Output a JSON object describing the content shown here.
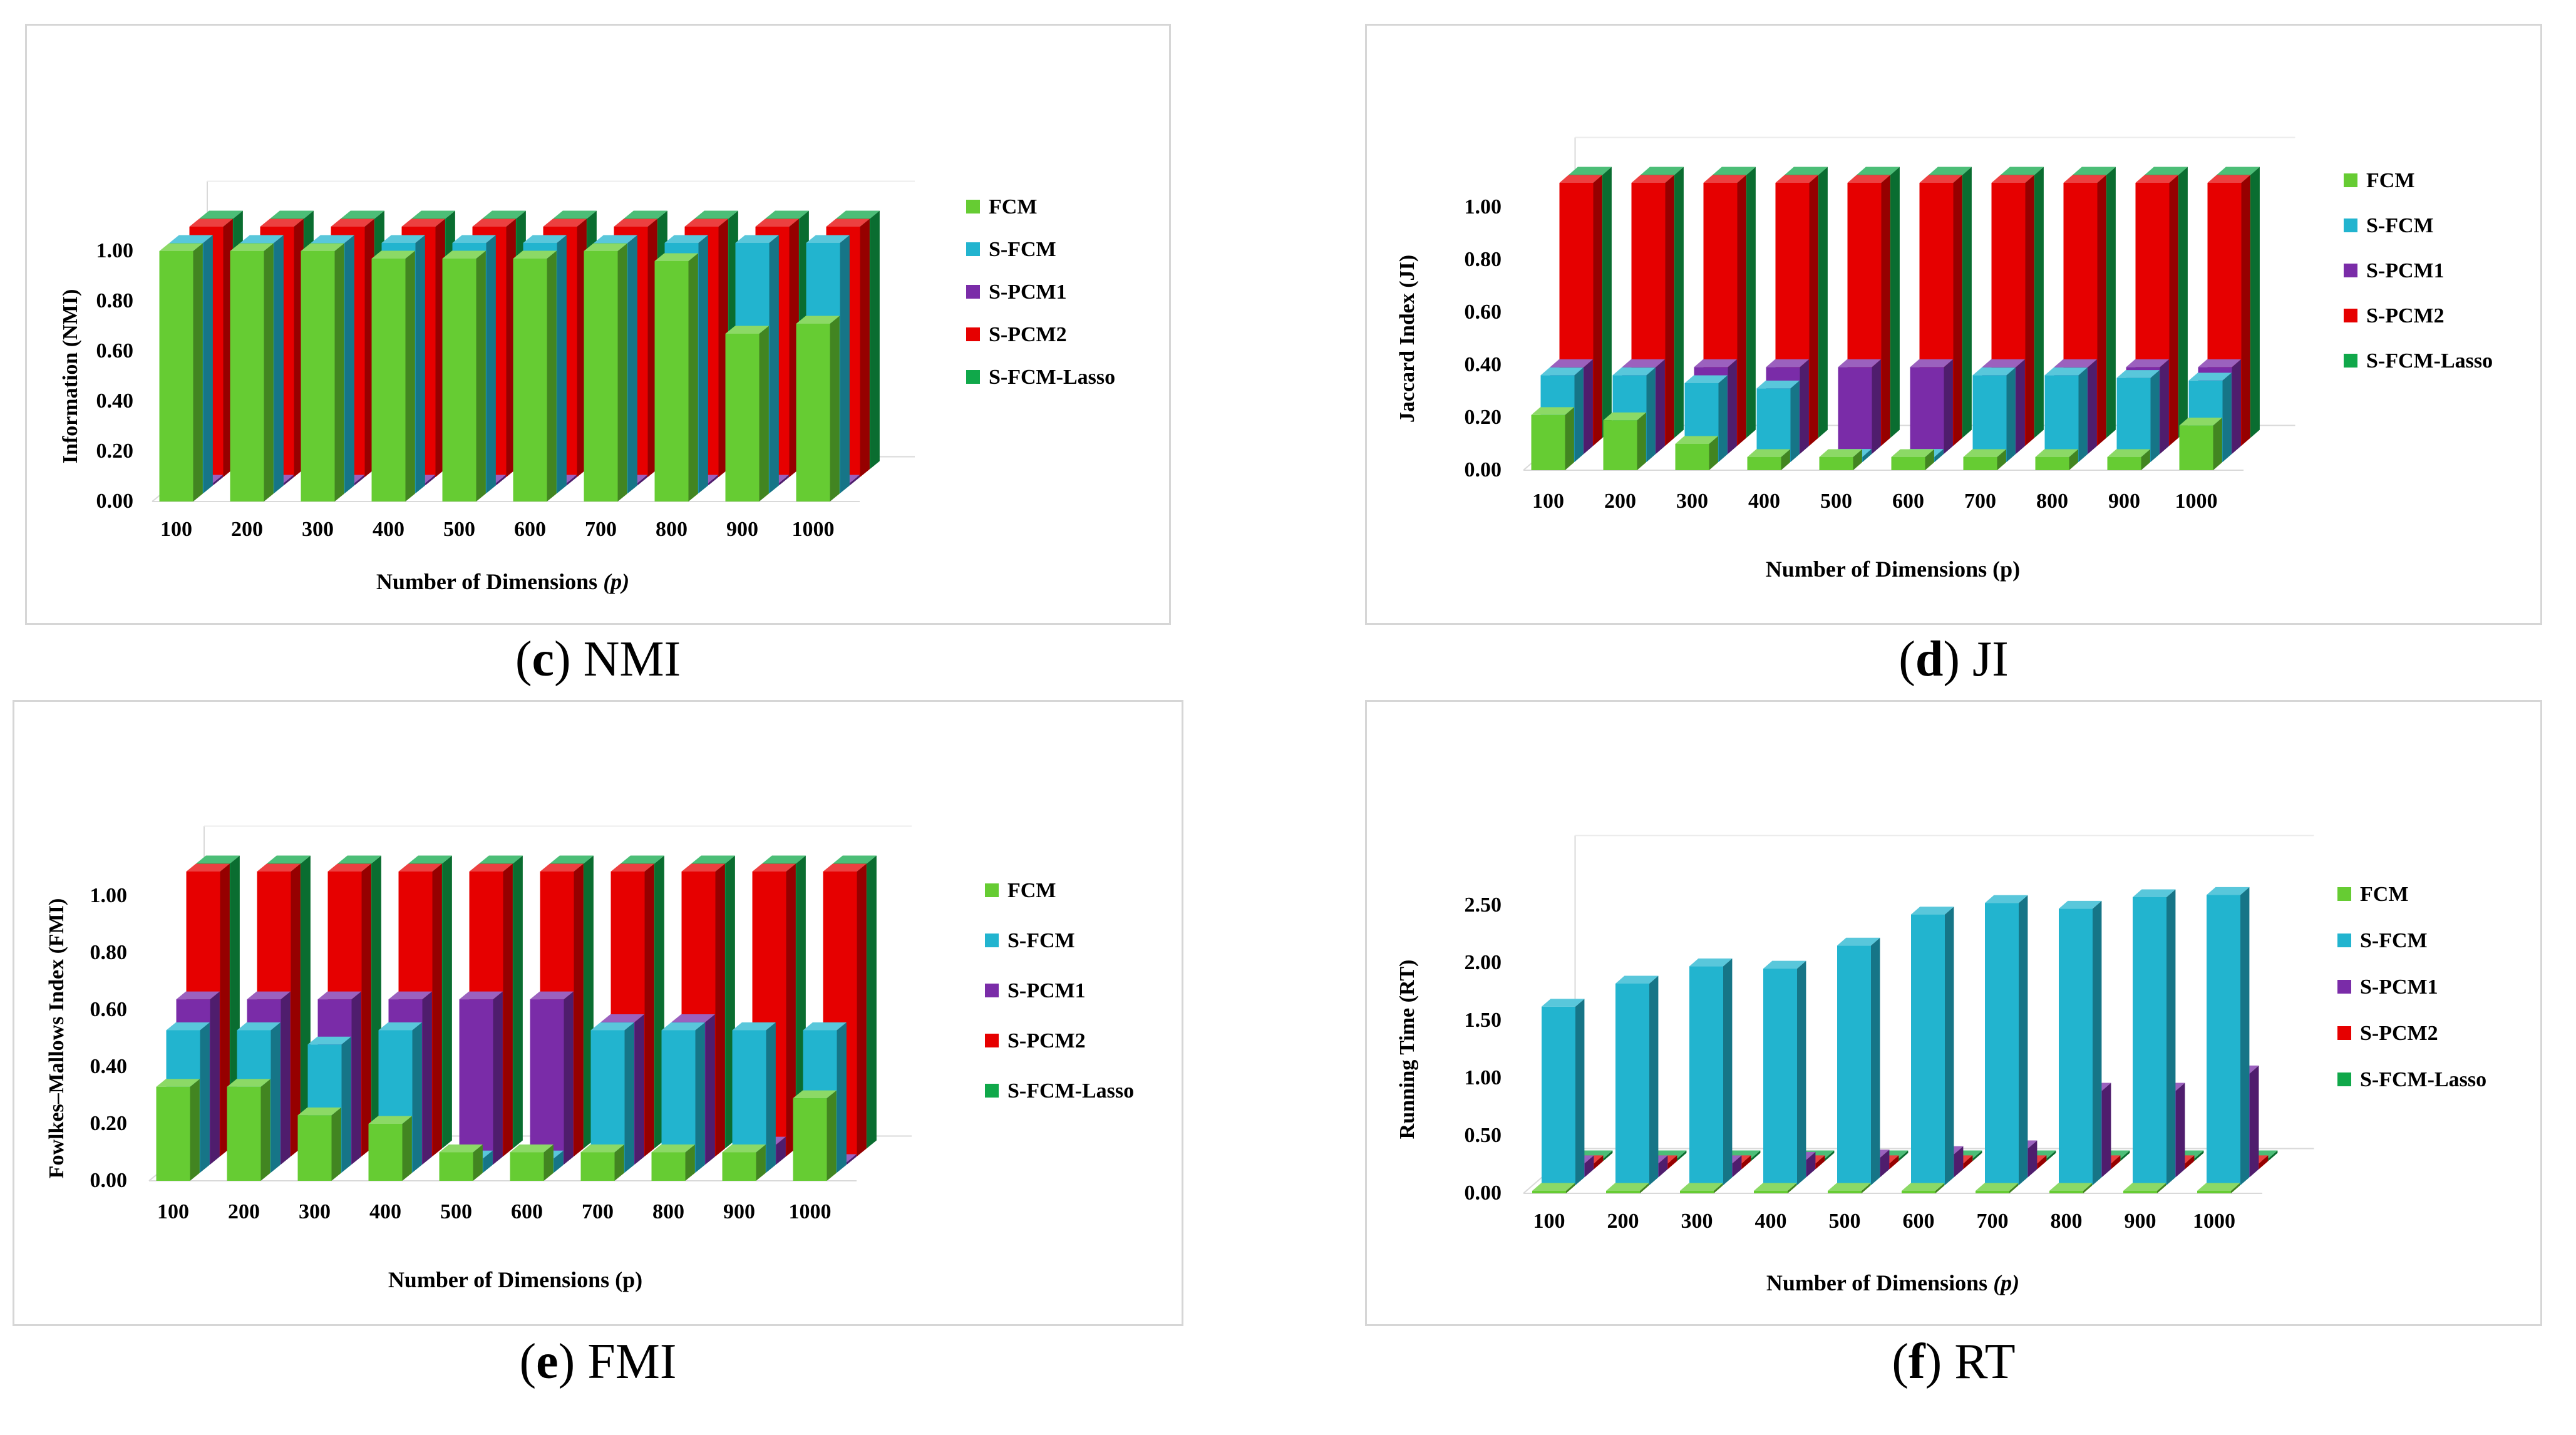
{
  "legend": [
    {
      "name": "FCM",
      "color": "#66cc33"
    },
    {
      "name": "S-FCM",
      "color": "#22b4cf"
    },
    {
      "name": "S-PCM1",
      "color": "#7a2ca8"
    },
    {
      "name": "S-PCM2",
      "color": "#e60000"
    },
    {
      "name": "S-FCM-Lasso",
      "color": "#10a84a"
    }
  ],
  "chart_data": [
    {
      "id": "c",
      "type": "bar",
      "caption_letter": "c",
      "caption_label": "NMI",
      "ylabel": "Information (NMI)",
      "xlabel": "Number of Dimensions ",
      "xlabel_italic": "(p)",
      "ylim": [
        0,
        1
      ],
      "yticks": [
        "0.00",
        "0.20",
        "0.40",
        "0.60",
        "0.80",
        "1.00"
      ],
      "categories": [
        "100",
        "200",
        "300",
        "400",
        "500",
        "600",
        "700",
        "800",
        "900",
        "1000"
      ],
      "series": [
        {
          "name": "FCM",
          "values": [
            1.0,
            1.0,
            1.0,
            0.97,
            0.97,
            0.97,
            1.0,
            0.96,
            0.67,
            0.71
          ]
        },
        {
          "name": "S-FCM",
          "values": [
            1.0,
            1.0,
            1.0,
            1.0,
            1.0,
            1.0,
            1.0,
            1.0,
            1.0,
            1.0
          ]
        },
        {
          "name": "S-PCM1",
          "values": [
            0.0,
            0.0,
            0.0,
            0.0,
            0.0,
            0.0,
            0.0,
            0.0,
            0.0,
            0.0
          ]
        },
        {
          "name": "S-PCM2",
          "values": [
            1.0,
            1.0,
            1.0,
            1.0,
            1.0,
            1.0,
            1.0,
            1.0,
            1.0,
            1.0
          ]
        },
        {
          "name": "S-FCM-Lasso",
          "values": [
            1.0,
            1.0,
            1.0,
            1.0,
            1.0,
            1.0,
            1.0,
            1.0,
            1.0,
            1.0
          ]
        }
      ]
    },
    {
      "id": "d",
      "type": "bar",
      "caption_letter": "d",
      "caption_label": "JI",
      "ylabel": "Jaccard Index (JI)",
      "xlabel": "Number of Dimensions (p)",
      "xlabel_italic": "",
      "ylim": [
        0,
        1
      ],
      "yticks": [
        "0.00",
        "0.20",
        "0.40",
        "0.60",
        "0.80",
        "1.00"
      ],
      "categories": [
        "100",
        "200",
        "300",
        "400",
        "500",
        "600",
        "700",
        "800",
        "900",
        "1000"
      ],
      "series": [
        {
          "name": "FCM",
          "values": [
            0.21,
            0.19,
            0.1,
            0.05,
            0.05,
            0.05,
            0.05,
            0.05,
            0.05,
            0.17
          ]
        },
        {
          "name": "S-FCM",
          "values": [
            0.33,
            0.33,
            0.3,
            0.28,
            0.02,
            0.02,
            0.33,
            0.33,
            0.32,
            0.31
          ]
        },
        {
          "name": "S-PCM1",
          "values": [
            0.33,
            0.33,
            0.33,
            0.33,
            0.33,
            0.33,
            0.33,
            0.33,
            0.33,
            0.33
          ]
        },
        {
          "name": "S-PCM2",
          "values": [
            1.0,
            1.0,
            1.0,
            1.0,
            1.0,
            1.0,
            1.0,
            1.0,
            1.0,
            1.0
          ]
        },
        {
          "name": "S-FCM-Lasso",
          "values": [
            1.0,
            1.0,
            1.0,
            1.0,
            1.0,
            1.0,
            1.0,
            1.0,
            1.0,
            1.0
          ]
        }
      ]
    },
    {
      "id": "e",
      "type": "bar",
      "caption_letter": "e",
      "caption_label": "FMI",
      "ylabel": "Fowlkes–Mallows Index (FMI)",
      "xlabel": "Number of Dimensions (p)",
      "xlabel_italic": "",
      "ylim": [
        0,
        1
      ],
      "yticks": [
        "0.00",
        "0.20",
        "0.40",
        "0.60",
        "0.80",
        "1.00"
      ],
      "categories": [
        "100",
        "200",
        "300",
        "400",
        "500",
        "600",
        "700",
        "800",
        "900",
        "1000"
      ],
      "series": [
        {
          "name": "FCM",
          "values": [
            0.33,
            0.33,
            0.23,
            0.2,
            0.1,
            0.1,
            0.1,
            0.1,
            0.1,
            0.29
          ]
        },
        {
          "name": "S-FCM",
          "values": [
            0.5,
            0.5,
            0.45,
            0.5,
            0.05,
            0.05,
            0.5,
            0.5,
            0.5,
            0.5
          ]
        },
        {
          "name": "S-PCM1",
          "values": [
            0.58,
            0.58,
            0.58,
            0.58,
            0.58,
            0.58,
            0.5,
            0.5,
            0.07,
            0.0
          ]
        },
        {
          "name": "S-PCM2",
          "values": [
            1.0,
            1.0,
            1.0,
            1.0,
            1.0,
            1.0,
            1.0,
            1.0,
            1.0,
            1.0
          ]
        },
        {
          "name": "S-FCM-Lasso",
          "values": [
            1.0,
            1.0,
            1.0,
            1.0,
            1.0,
            1.0,
            1.0,
            1.0,
            1.0,
            1.0
          ]
        }
      ]
    },
    {
      "id": "f",
      "type": "bar",
      "caption_letter": "f",
      "caption_label": "RT",
      "ylabel": "Running Time (RT)",
      "xlabel": "Number of Dimensions ",
      "xlabel_italic": "(p)",
      "ylim": [
        0,
        2.5
      ],
      "yticks": [
        "0.00",
        "0.50",
        "1.00",
        "1.50",
        "2.00",
        "2.50"
      ],
      "categories": [
        "100",
        "200",
        "300",
        "400",
        "500",
        "600",
        "700",
        "800",
        "900",
        "1000"
      ],
      "series": [
        {
          "name": "FCM",
          "values": [
            0.02,
            0.02,
            0.02,
            0.02,
            0.02,
            0.02,
            0.02,
            0.02,
            0.02,
            0.02
          ]
        },
        {
          "name": "S-FCM",
          "values": [
            1.55,
            1.75,
            1.9,
            1.88,
            2.08,
            2.35,
            2.45,
            2.4,
            2.5,
            2.52
          ]
        },
        {
          "name": "S-PCM1",
          "values": [
            0.12,
            0.12,
            0.12,
            0.15,
            0.17,
            0.2,
            0.25,
            0.75,
            0.75,
            0.9
          ]
        },
        {
          "name": "S-PCM2",
          "values": [
            0.05,
            0.05,
            0.05,
            0.05,
            0.05,
            0.05,
            0.05,
            0.05,
            0.05,
            0.05
          ]
        },
        {
          "name": "S-FCM-Lasso",
          "values": [
            0.02,
            0.02,
            0.02,
            0.02,
            0.02,
            0.02,
            0.02,
            0.02,
            0.02,
            0.02
          ]
        }
      ]
    }
  ]
}
